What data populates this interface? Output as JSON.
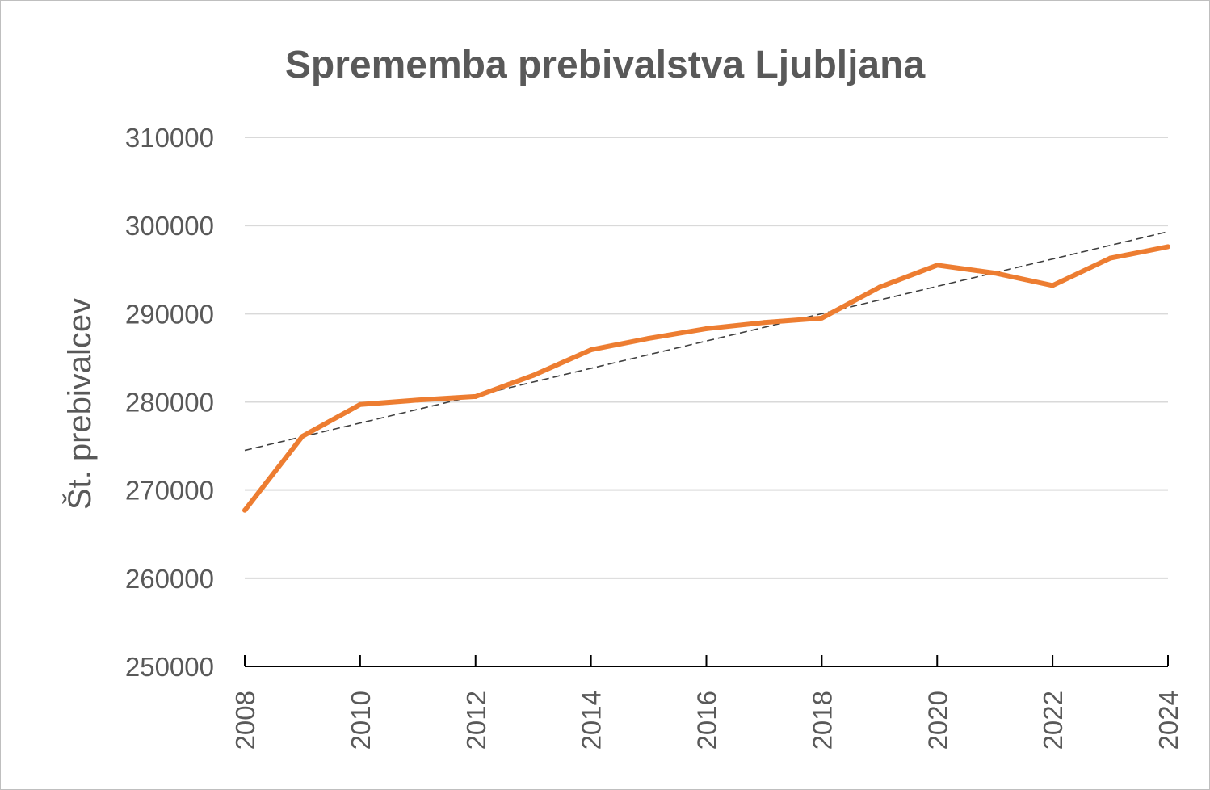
{
  "chart_data": {
    "type": "line",
    "title": "Sprememba prebivalstva Ljubljana",
    "ylabel": "Št. prebivalcev",
    "xlabel": "",
    "ylim": [
      250000,
      310000
    ],
    "yticks": [
      250000,
      260000,
      270000,
      280000,
      290000,
      300000,
      310000
    ],
    "xlim": [
      2008,
      2024
    ],
    "xticks": [
      2008,
      2010,
      2012,
      2014,
      2016,
      2018,
      2020,
      2022,
      2024
    ],
    "grid": true,
    "legend": "none",
    "series": [
      {
        "x": [
          2008,
          2009,
          2010,
          2011,
          2012,
          2013,
          2014,
          2015,
          2016,
          2017,
          2018,
          2019,
          2020,
          2021,
          2022,
          2023,
          2024
        ],
        "values": [
          267700,
          276100,
          279700,
          280200,
          280600,
          283000,
          285900,
          287200,
          288300,
          289000,
          289500,
          293000,
          295500,
          294600,
          293200,
          296300,
          297600
        ],
        "color": "#ed7d31",
        "style": "solid"
      }
    ],
    "trendline": {
      "type": "linear",
      "x": [
        2008,
        2024
      ],
      "values": [
        274500,
        299300
      ],
      "color": "#404040",
      "style": "dashed"
    }
  }
}
